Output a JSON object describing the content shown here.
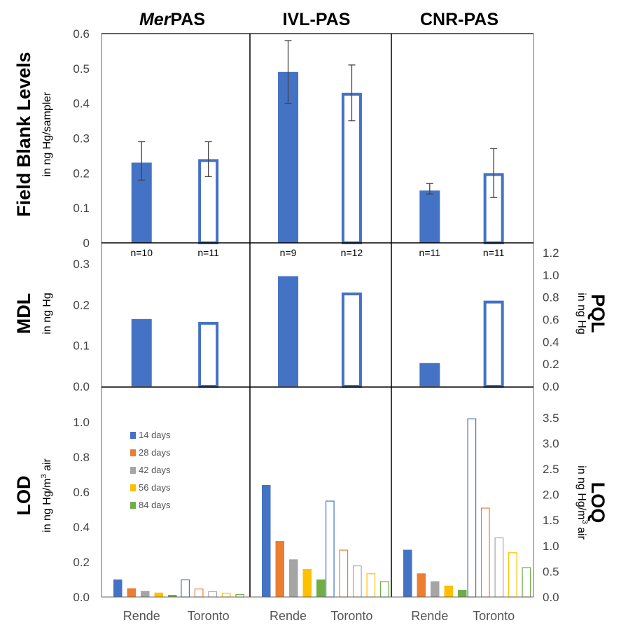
{
  "colors": {
    "blue": "#4472C4",
    "orange": "#ED7D31",
    "gray": "#A5A5A5",
    "yellow": "#FFC000",
    "green": "#70AD47"
  },
  "figure": {
    "samplers": [
      {
        "title_italic": "Mer",
        "title": "PAS"
      },
      {
        "title_italic": "",
        "title": "IVL-PAS"
      },
      {
        "title_italic": "",
        "title": "CNR-PAS"
      }
    ],
    "sites": [
      "Rende",
      "Toronto"
    ]
  },
  "chart_data": [
    {
      "type": "bar",
      "panel": "field-blank",
      "title": "Field Blank Levels",
      "ylabel": "in ng Hg/sampler",
      "ylim": [
        0,
        0.6
      ],
      "yticks": [
        "0",
        "0.1",
        "0.2",
        "0.3",
        "0.4",
        "0.5",
        "0.6"
      ],
      "series": [
        {
          "sampler": "MerPAS",
          "site": "Rende",
          "value": 0.23,
          "err_low": 0.18,
          "err_high": 0.29,
          "n": "n=10"
        },
        {
          "sampler": "MerPAS",
          "site": "Toronto",
          "value": 0.24,
          "err_low": 0.19,
          "err_high": 0.29,
          "n": "n=11"
        },
        {
          "sampler": "IVL-PAS",
          "site": "Rende",
          "value": 0.49,
          "err_low": 0.4,
          "err_high": 0.58,
          "n": "n=9"
        },
        {
          "sampler": "IVL-PAS",
          "site": "Toronto",
          "value": 0.43,
          "err_low": 0.35,
          "err_high": 0.51,
          "n": "n=12"
        },
        {
          "sampler": "CNR-PAS",
          "site": "Rende",
          "value": 0.15,
          "err_low": 0.14,
          "err_high": 0.17,
          "n": "n=11"
        },
        {
          "sampler": "CNR-PAS",
          "site": "Toronto",
          "value": 0.2,
          "err_low": 0.13,
          "err_high": 0.27,
          "n": "n=11"
        }
      ]
    },
    {
      "type": "bar",
      "panel": "mdl",
      "title": "MDL",
      "ylabel": "in ng Hg",
      "ylim": [
        0,
        0.35
      ],
      "yticks": [
        "0.0",
        "0.1",
        "0.2",
        "0.3"
      ],
      "y2label": "PQL",
      "y2unit": "in ng Hg",
      "y2lim": [
        0,
        1.2
      ],
      "y2ticks": [
        "0.0",
        "0.2",
        "0.4",
        "0.6",
        "0.8",
        "1.0",
        "1.2"
      ],
      "series": [
        {
          "sampler": "MerPAS",
          "site": "Rende",
          "value": 0.165
        },
        {
          "sampler": "MerPAS",
          "site": "Toronto",
          "value": 0.158
        },
        {
          "sampler": "IVL-PAS",
          "site": "Rende",
          "value": 0.27
        },
        {
          "sampler": "IVL-PAS",
          "site": "Toronto",
          "value": 0.23
        },
        {
          "sampler": "CNR-PAS",
          "site": "Rende",
          "value": 0.057
        },
        {
          "sampler": "CNR-PAS",
          "site": "Toronto",
          "value": 0.21
        }
      ]
    },
    {
      "type": "bar",
      "panel": "lod",
      "title": "LOD",
      "ylabel_pre": "in ng Hg/m",
      "ylabel_sup": "3",
      "ylabel_post": " air",
      "ylim": [
        0,
        1.2
      ],
      "yticks": [
        "0.0",
        "0.2",
        "0.4",
        "0.6",
        "0.8",
        "1.0"
      ],
      "y2label": "LOQ",
      "y2unit_pre": "in ng Hg/m",
      "y2unit_sup": "3",
      "y2unit_post": " air",
      "y2lim": [
        0,
        4.1
      ],
      "y2ticks": [
        "0.0",
        "0.5",
        "1.0",
        "1.5",
        "2.0",
        "2.5",
        "3.0",
        "3.5"
      ],
      "legend": [
        "14 days",
        "28 days",
        "42 days",
        "56 days",
        "84 days"
      ],
      "series": [
        {
          "sampler": "MerPAS",
          "site": "Rende",
          "values": [
            0.1,
            0.05,
            0.035,
            0.025,
            0.012
          ]
        },
        {
          "sampler": "MerPAS",
          "site": "Toronto",
          "values": [
            0.1,
            0.048,
            0.033,
            0.024,
            0.016
          ]
        },
        {
          "sampler": "IVL-PAS",
          "site": "Rende",
          "values": [
            0.64,
            0.32,
            0.215,
            0.16,
            0.1
          ]
        },
        {
          "sampler": "IVL-PAS",
          "site": "Toronto",
          "values": [
            0.55,
            0.27,
            0.18,
            0.135,
            0.09
          ]
        },
        {
          "sampler": "CNR-PAS",
          "site": "Rende",
          "values": [
            0.27,
            0.135,
            0.09,
            0.065,
            0.04
          ]
        },
        {
          "sampler": "CNR-PAS",
          "site": "Toronto",
          "values": [
            1.02,
            0.51,
            0.34,
            0.255,
            0.17
          ]
        }
      ]
    }
  ]
}
